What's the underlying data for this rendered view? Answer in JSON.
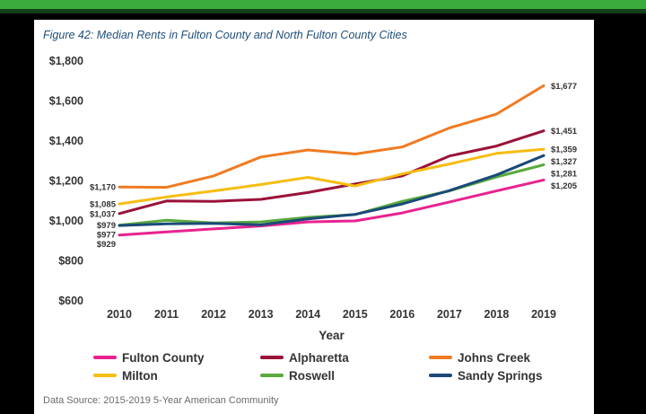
{
  "figure_title": "Figure 42: Median Rents in Fulton County and North Fulton County Cities",
  "source_note": "Data Source: 2015-2019 5-Year American Community",
  "colors": {
    "top_bar": "#3aab3c",
    "title": "#1f4e79"
  },
  "chart_data": {
    "type": "line",
    "title": "Figure 42: Median Rents in Fulton County and North Fulton County Cities",
    "xlabel": "Year",
    "ylabel": "",
    "x": [
      "2010",
      "2011",
      "2012",
      "2013",
      "2014",
      "2015",
      "2016",
      "2017",
      "2018",
      "2019"
    ],
    "ylim": [
      600,
      1800
    ],
    "yticks": [
      600,
      800,
      1000,
      1200,
      1400,
      1600,
      1800
    ],
    "ytick_labels": [
      "$600",
      "$800",
      "$1,000",
      "$1,200",
      "$1,400",
      "$1,600",
      "$1,800"
    ],
    "grid": false,
    "legend_position": "bottom",
    "series": [
      {
        "name": "Fulton County",
        "color": "#e8238f",
        "values": [
          929,
          945,
          960,
          975,
          995,
          1000,
          1040,
          1095,
          1150,
          1205
        ],
        "start_label": "$929",
        "end_label": "$1,205"
      },
      {
        "name": "Alpharetta",
        "color": "#9b1239",
        "values": [
          1037,
          1100,
          1098,
          1108,
          1142,
          1185,
          1225,
          1325,
          1375,
          1451
        ],
        "start_label": "$1,037",
        "end_label": "$1,451"
      },
      {
        "name": "Johns Creek",
        "color": "#f07b22",
        "values": [
          1170,
          1168,
          1225,
          1320,
          1355,
          1335,
          1370,
          1465,
          1535,
          1677
        ],
        "start_label": "$1,170",
        "end_label": "$1,677"
      },
      {
        "name": "Milton",
        "color": "#f6bd12",
        "values": [
          1085,
          1120,
          1150,
          1182,
          1218,
          1175,
          1235,
          1285,
          1338,
          1359
        ],
        "start_label": "$1,085",
        "end_label": "$1,359"
      },
      {
        "name": "Roswell",
        "color": "#5aaa3c",
        "values": [
          979,
          1003,
          990,
          995,
          1018,
          1032,
          1098,
          1150,
          1220,
          1281
        ],
        "start_label": "$979",
        "end_label": "$1,281"
      },
      {
        "name": "Sandy Springs",
        "color": "#1b4a7a",
        "values": [
          977,
          985,
          988,
          980,
          1010,
          1033,
          1085,
          1152,
          1230,
          1327
        ],
        "start_label": "$977",
        "end_label": "$1,327"
      }
    ]
  }
}
